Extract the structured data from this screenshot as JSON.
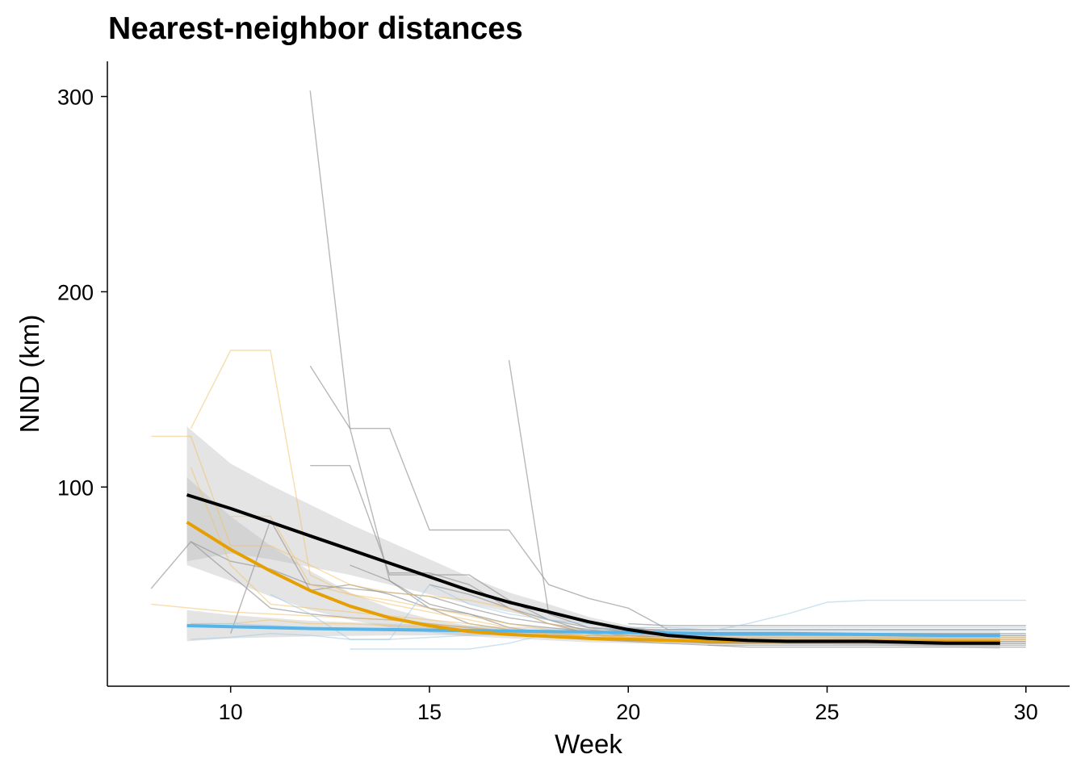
{
  "chart_data": {
    "type": "line",
    "title": "Nearest-neighbor distances",
    "xlabel": "Week",
    "ylabel": "NND (km)",
    "xlim": [
      6.9,
      31.1
    ],
    "ylim": [
      -2,
      318
    ],
    "x_ticks": [
      10,
      15,
      20,
      25,
      30
    ],
    "y_ticks": [
      100,
      200,
      300
    ],
    "grid": false,
    "legend": "none",
    "colors": {
      "individual_gray": "#9a9a9a",
      "individual_orange": "#f3c16a",
      "individual_blue": "#9fcbe8",
      "band_gray": "#b9b9b9",
      "smooth_black": "#000000",
      "smooth_orange": "#e69f00",
      "smooth_blue": "#56b4e9"
    },
    "individual_series": [
      {
        "group": "gray",
        "x": [
          12,
          13,
          14,
          15,
          16,
          17,
          18,
          19,
          20,
          21,
          22,
          30
        ],
        "y": [
          303,
          130,
          52,
          38,
          30,
          27,
          25,
          24,
          24,
          23,
          23,
          23
        ]
      },
      {
        "group": "gray",
        "x": [
          12,
          13,
          14,
          15,
          16,
          17,
          18,
          19,
          20,
          21,
          30
        ],
        "y": [
          162,
          130,
          130,
          78,
          78,
          78,
          50,
          43,
          38,
          27,
          27
        ]
      },
      {
        "group": "gray",
        "x": [
          17,
          18,
          19,
          20,
          21,
          30
        ],
        "y": [
          165,
          35,
          28,
          27,
          27,
          27
        ]
      },
      {
        "group": "gray",
        "x": [
          12,
          13,
          14,
          15,
          16,
          17,
          18,
          19,
          20,
          21,
          22,
          30
        ],
        "y": [
          111,
          111,
          55,
          55,
          55,
          42,
          32,
          26,
          24,
          22,
          21,
          21
        ]
      },
      {
        "group": "gray",
        "x": [
          8,
          9,
          10,
          11,
          12,
          13,
          14,
          15,
          16,
          17,
          18,
          19,
          20,
          21,
          30
        ],
        "y": [
          48,
          72,
          55,
          38,
          35,
          33,
          32,
          30,
          28,
          26,
          25,
          24,
          23,
          22,
          22
        ]
      },
      {
        "group": "gray",
        "x": [
          10,
          11,
          12,
          13,
          14,
          15,
          16,
          17,
          18,
          19,
          20,
          21,
          30
        ],
        "y": [
          25,
          83,
          47,
          50,
          45,
          38,
          35,
          30,
          28,
          26,
          24,
          23,
          23
        ]
      },
      {
        "group": "gray",
        "x": [
          9,
          10,
          11,
          12,
          13,
          14,
          15,
          16,
          17,
          18,
          19,
          20,
          21,
          22,
          30
        ],
        "y": [
          72,
          62,
          58,
          50,
          48,
          46,
          44,
          38,
          33,
          30,
          27,
          25,
          24,
          24,
          24
        ]
      },
      {
        "group": "gray",
        "x": [
          13,
          14,
          15,
          16,
          17,
          18,
          19,
          20,
          21,
          22,
          30
        ],
        "y": [
          60,
          52,
          40,
          35,
          28,
          25,
          23,
          22,
          21,
          20,
          20
        ]
      },
      {
        "group": "gray",
        "x": [
          14,
          15,
          16,
          17,
          18,
          19,
          20,
          21,
          22,
          30
        ],
        "y": [
          56,
          56,
          50,
          38,
          30,
          25,
          23,
          22,
          21,
          21
        ]
      },
      {
        "group": "gray",
        "x": [
          15,
          16,
          17,
          18,
          19,
          20,
          21,
          22,
          30
        ],
        "y": [
          50,
          45,
          38,
          32,
          28,
          26,
          25,
          24,
          24
        ]
      },
      {
        "group": "gray",
        "x": [
          20,
          21,
          22,
          30
        ],
        "y": [
          28,
          26,
          25,
          25
        ]
      },
      {
        "group": "gray",
        "x": [
          21,
          22,
          30
        ],
        "y": [
          22,
          20,
          20
        ]
      },
      {
        "group": "gray",
        "x": [
          22,
          23,
          30
        ],
        "y": [
          19,
          18,
          18
        ]
      },
      {
        "group": "gray",
        "x": [
          19,
          20,
          21,
          22,
          30
        ],
        "y": [
          22,
          21,
          20,
          19,
          19
        ]
      },
      {
        "group": "gray",
        "x": [
          20,
          21,
          30
        ],
        "y": [
          30,
          29,
          29
        ]
      },
      {
        "group": "orange",
        "x": [
          8,
          9,
          10,
          11,
          12,
          13,
          14,
          15,
          16,
          17,
          18,
          19,
          20,
          21,
          30
        ],
        "y": [
          126,
          126,
          70,
          70,
          60,
          50,
          46,
          44,
          42,
          38,
          30,
          26,
          24,
          22,
          22
        ]
      },
      {
        "group": "orange",
        "x": [
          9,
          10,
          11,
          12,
          13,
          14,
          15,
          16,
          17,
          18,
          19,
          20,
          30
        ],
        "y": [
          130,
          170,
          170,
          55,
          45,
          40,
          36,
          32,
          28,
          25,
          23,
          22,
          22
        ]
      },
      {
        "group": "orange",
        "x": [
          9,
          10,
          11,
          12,
          13,
          14,
          15,
          16,
          17,
          18,
          19,
          20,
          30
        ],
        "y": [
          110,
          60,
          40,
          38,
          36,
          34,
          32,
          30,
          27,
          25,
          24,
          23,
          23
        ]
      },
      {
        "group": "orange",
        "x": [
          8,
          9,
          10,
          11,
          12,
          13,
          14,
          15,
          16,
          17,
          18,
          19,
          20,
          30
        ],
        "y": [
          40,
          38,
          36,
          35,
          34,
          33,
          32,
          30,
          28,
          26,
          25,
          24,
          23,
          23
        ]
      },
      {
        "group": "orange",
        "x": [
          10,
          11,
          12,
          13,
          14,
          15,
          16,
          17,
          18,
          19,
          20,
          30
        ],
        "y": [
          85,
          85,
          50,
          45,
          42,
          38,
          34,
          30,
          27,
          25,
          23,
          23
        ]
      },
      {
        "group": "orange",
        "x": [
          9,
          10,
          11,
          12,
          13,
          14,
          15,
          16,
          17,
          18,
          19,
          20,
          30
        ],
        "y": [
          30,
          30,
          32,
          30,
          30,
          29,
          28,
          27,
          26,
          25,
          24,
          23,
          23
        ]
      },
      {
        "group": "blue",
        "x": [
          9,
          10,
          11,
          12,
          13,
          14,
          15,
          16,
          17,
          18,
          19,
          20,
          21,
          22,
          23,
          24,
          25,
          26,
          27,
          28,
          29,
          30
        ],
        "y": [
          30,
          30,
          29,
          28,
          27,
          27,
          26,
          26,
          26,
          26,
          26,
          26,
          26,
          26,
          30,
          35,
          41,
          42,
          42,
          42,
          42,
          42
        ]
      },
      {
        "group": "blue",
        "x": [
          13,
          14,
          15,
          16,
          17,
          18,
          19,
          20,
          21,
          22,
          30
        ],
        "y": [
          17,
          17,
          17,
          17,
          20,
          25,
          27,
          28,
          28,
          27,
          27
        ]
      },
      {
        "group": "blue",
        "x": [
          11,
          12,
          13,
          14,
          15,
          16,
          17,
          18,
          19,
          20,
          30
        ],
        "y": [
          45,
          35,
          22,
          22,
          50,
          40,
          35,
          32,
          30,
          28,
          28
        ]
      },
      {
        "group": "blue",
        "x": [
          9,
          10,
          11,
          12,
          13,
          14,
          15,
          16,
          17,
          18,
          19,
          20,
          21,
          22,
          30
        ],
        "y": [
          22,
          23,
          25,
          24,
          22,
          22,
          23,
          24,
          25,
          26,
          26,
          25,
          24,
          24,
          24
        ]
      }
    ],
    "smooth_series": [
      {
        "name": "black",
        "x": [
          8.9,
          10,
          11,
          12,
          13,
          14,
          15,
          16,
          17,
          18,
          19,
          20,
          21,
          22,
          23,
          24,
          25,
          26,
          27,
          28,
          29.35
        ],
        "y": [
          96,
          89,
          82,
          75,
          68,
          61,
          54,
          47,
          41,
          36,
          31,
          27,
          24,
          22.5,
          21.5,
          21,
          21,
          21,
          20.5,
          20,
          20
        ],
        "lower": [
          62,
          66,
          63,
          59,
          55,
          50,
          45,
          40,
          36,
          32,
          28.5,
          25,
          22.5,
          21,
          20,
          19.5,
          19.5,
          19,
          18.5,
          18,
          17
        ],
        "upper": [
          131,
          112,
          101,
          91,
          81,
          72,
          63,
          54,
          46,
          40,
          33.5,
          29,
          25.5,
          24,
          23,
          22.5,
          22.5,
          23,
          23,
          23,
          23.5
        ]
      },
      {
        "name": "orange",
        "x": [
          8.9,
          10,
          11,
          12,
          13,
          14,
          15,
          16,
          17,
          18,
          19,
          20,
          21,
          22,
          23,
          24,
          25,
          26,
          27,
          28,
          29.35
        ],
        "y": [
          82,
          68,
          57,
          47,
          39,
          33,
          29,
          26,
          24.5,
          23.5,
          22.5,
          22,
          21.5,
          21,
          21,
          21,
          21,
          21,
          21,
          21,
          21
        ],
        "lower": [
          60,
          52,
          44,
          37,
          32,
          28,
          25.5,
          23.5,
          22.5,
          21.5,
          20.5,
          20,
          19.5,
          19.5,
          19.5,
          19.5,
          19.5,
          19.5,
          19.5,
          19,
          19
        ],
        "upper": [
          105,
          85,
          70,
          57,
          46,
          38,
          32.5,
          29,
          26.5,
          25.5,
          24.5,
          24,
          23.5,
          23,
          23,
          23,
          23,
          23,
          23,
          23,
          23
        ]
      },
      {
        "name": "blue",
        "x": [
          8.9,
          10,
          12,
          14,
          16,
          18,
          20,
          22,
          24,
          26,
          28,
          29.35
        ],
        "y": [
          29,
          28.5,
          27.5,
          27,
          26.5,
          26,
          25.5,
          25,
          25,
          24.5,
          24,
          24
        ],
        "lower": [
          21,
          22.5,
          23.5,
          24,
          24,
          24,
          24,
          23.5,
          23,
          22.5,
          22,
          21
        ],
        "upper": [
          37,
          34.5,
          31.5,
          30,
          29,
          28,
          27.5,
          27,
          27,
          27,
          27,
          27
        ]
      }
    ]
  }
}
